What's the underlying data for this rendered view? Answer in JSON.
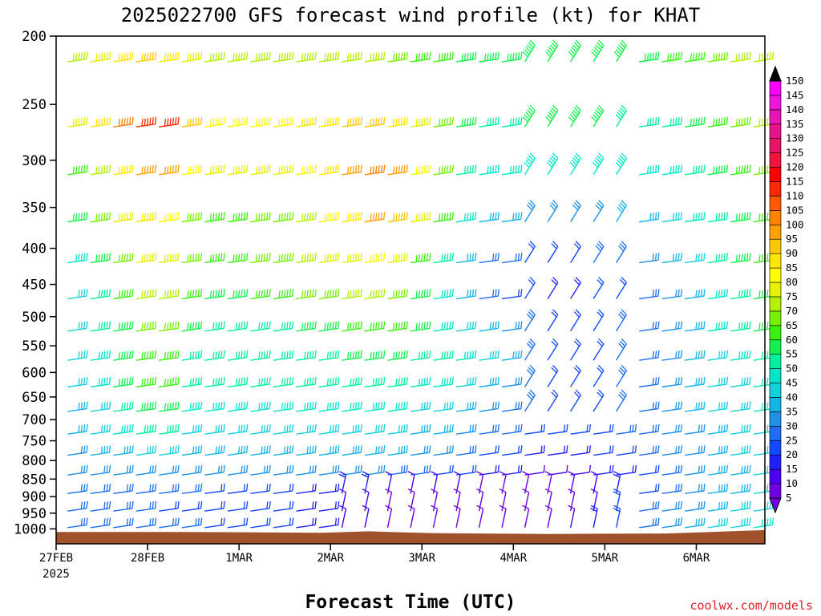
{
  "chart_data": {
    "type": "wind-barb time-height",
    "title": "2025022700 GFS forecast wind profile (kt) for KHAT",
    "xlabel": "Forecast Time (UTC)",
    "credit": "coolwx.com/models",
    "x_tick_labels": [
      "27FEB",
      "28FEB",
      "1MAR",
      "2MAR",
      "3MAR",
      "4MAR",
      "5MAR",
      "6MAR"
    ],
    "x_year_label": "2025",
    "y_levels_hpa": [
      200,
      250,
      300,
      350,
      400,
      450,
      500,
      550,
      600,
      650,
      700,
      750,
      800,
      850,
      900,
      950,
      1000
    ],
    "y_tick_labels": [
      "200",
      "250",
      "300",
      "350",
      "400",
      "450",
      "500",
      "550",
      "600",
      "650",
      "700",
      "750",
      "800",
      "850",
      "900",
      "950",
      "1000"
    ],
    "x_range_hours": [
      0,
      186
    ],
    "colorbar": {
      "unit": "kt",
      "labels": [
        "5",
        "10",
        "15",
        "20",
        "25",
        "30",
        "35",
        "40",
        "45",
        "50",
        "55",
        "60",
        "65",
        "70",
        "75",
        "80",
        "85",
        "90",
        "95",
        "100",
        "105",
        "110",
        "115",
        "120",
        "125",
        "130",
        "135",
        "140",
        "145",
        "150"
      ],
      "colors": [
        "#7000e0",
        "#4a00f0",
        "#2020ff",
        "#1448ff",
        "#1e6ef0",
        "#1e90e6",
        "#14b4e6",
        "#14d2dc",
        "#00e6c8",
        "#00f0a0",
        "#14f050",
        "#3cf014",
        "#78f000",
        "#b4f000",
        "#e6f000",
        "#ffff00",
        "#ffe600",
        "#ffc800",
        "#ffa000",
        "#ff8200",
        "#ff5a00",
        "#ff2800",
        "#ff0000",
        "#f0143c",
        "#e61464",
        "#e6148c",
        "#e614b4",
        "#f014dc",
        "#ff00ff"
      ]
    },
    "terrain_color": "#a0522d",
    "wind_profile": {
      "description_free": true,
      "key_times_hours": [
        0,
        24,
        36,
        60,
        84,
        108,
        132,
        156,
        186
      ],
      "speed_by_level_kt": {
        "200": [
          70,
          95,
          70,
          75,
          70,
          55,
          55,
          60,
          75
        ],
        "250": [
          70,
          120,
          80,
          85,
          95,
          50,
          60,
          50,
          75
        ],
        "300": [
          55,
          105,
          75,
          80,
          105,
          45,
          45,
          45,
          70
        ],
        "350": [
          50,
          90,
          60,
          70,
          100,
          40,
          30,
          40,
          65
        ],
        "400": [
          45,
          80,
          60,
          70,
          85,
          30,
          20,
          35,
          65
        ],
        "450": [
          40,
          75,
          55,
          65,
          75,
          30,
          15,
          30,
          60
        ],
        "500": [
          40,
          70,
          50,
          55,
          65,
          40,
          20,
          30,
          60
        ],
        "550": [
          40,
          65,
          50,
          50,
          60,
          45,
          20,
          30,
          55
        ],
        "600": [
          40,
          65,
          50,
          50,
          55,
          40,
          20,
          30,
          50
        ],
        "650": [
          35,
          60,
          45,
          45,
          50,
          35,
          20,
          30,
          50
        ],
        "700": [
          35,
          55,
          40,
          40,
          45,
          30,
          20,
          30,
          45
        ],
        "750": [
          30,
          45,
          35,
          35,
          40,
          25,
          15,
          30,
          45
        ],
        "800": [
          30,
          35,
          30,
          30,
          30,
          20,
          10,
          25,
          45
        ],
        "850": [
          25,
          30,
          25,
          20,
          15,
          10,
          8,
          25,
          45
        ],
        "900": [
          25,
          25,
          20,
          20,
          10,
          8,
          5,
          30,
          45
        ],
        "950": [
          30,
          25,
          25,
          20,
          10,
          8,
          8,
          30,
          50
        ],
        "1000": [
          25,
          20,
          20,
          15,
          8,
          8,
          8,
          30,
          50
        ]
      }
    }
  }
}
